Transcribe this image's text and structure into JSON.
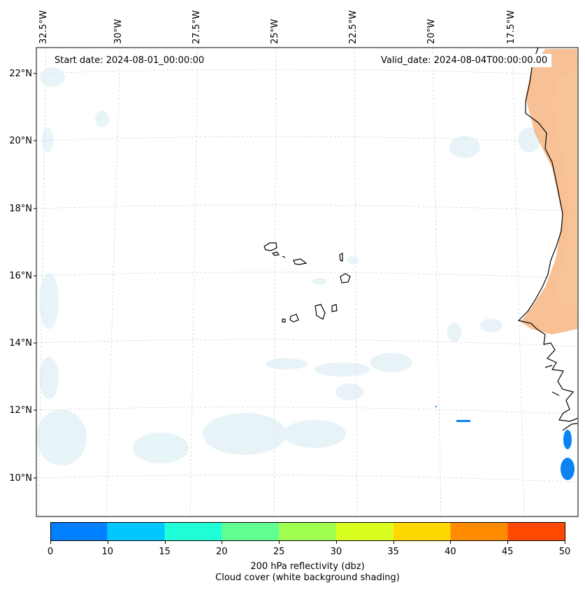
{
  "map": {
    "start_date": "Start date: 2024-08-01_00:00:00",
    "valid_date": "Valid_date: 2024-08-04T00:00:00.00",
    "longitude_labels": [
      "32.5°W",
      "30°W",
      "27.5°W",
      "25°W",
      "22.5°W",
      "20°W",
      "17.5°W"
    ],
    "latitude_labels": [
      "22°N",
      "20°N",
      "18°N",
      "16°N",
      "14°N",
      "12°N",
      "10°N"
    ]
  },
  "colorbar": {
    "ticks": [
      "0",
      "10",
      "15",
      "20",
      "25",
      "30",
      "35",
      "40",
      "45",
      "50"
    ],
    "colors": [
      "#0080ff",
      "#00c8ff",
      "#20ffd8",
      "#60ff90",
      "#a0ff50",
      "#d8ff20",
      "#ffd800",
      "#ff8c00",
      "#ff4800"
    ],
    "title_line1": "200 hPa reflectivity (dbz)",
    "title_line2": "Cloud cover (white background shading)"
  }
}
